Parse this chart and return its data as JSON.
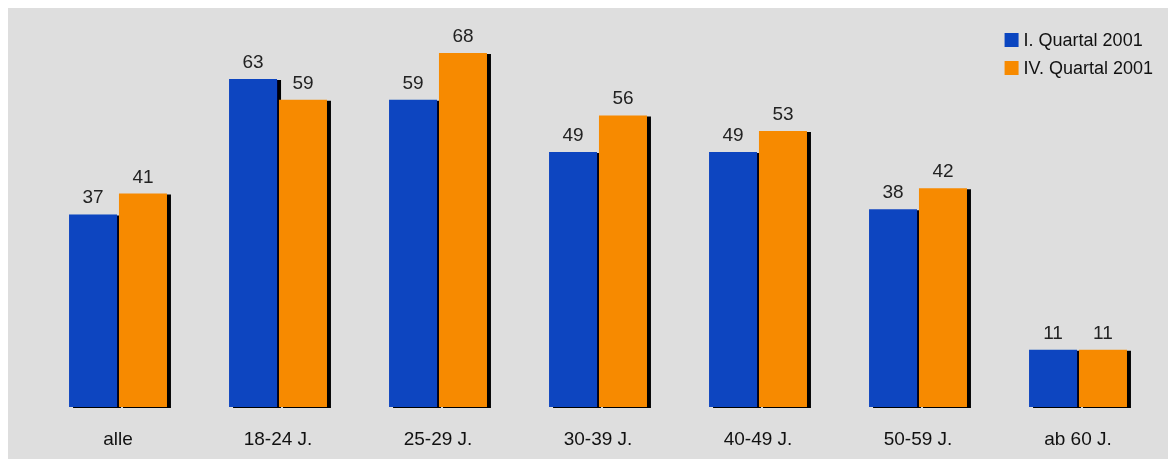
{
  "chart_data": {
    "type": "bar",
    "categories": [
      "alle",
      "18-24 J.",
      "25-29 J.",
      "30-39 J.",
      "40-49 J.",
      "50-59 J.",
      "ab 60 J."
    ],
    "series": [
      {
        "name": "I. Quartal 2001",
        "color": "#0a45c0",
        "values": [
          37,
          63,
          59,
          49,
          49,
          38,
          11
        ]
      },
      {
        "name": "IV. Quartal 2001",
        "color": "#f78a00",
        "values": [
          41,
          59,
          68,
          56,
          53,
          42,
          11
        ]
      }
    ],
    "data_labels": true,
    "legend": "top right"
  }
}
